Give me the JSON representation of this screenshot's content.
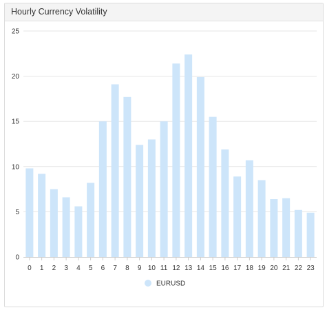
{
  "widget": {
    "title": "Hourly Currency Volatility"
  },
  "chart_data": {
    "type": "bar",
    "categories": [
      "0",
      "1",
      "2",
      "3",
      "4",
      "5",
      "6",
      "7",
      "8",
      "9",
      "10",
      "11",
      "12",
      "13",
      "14",
      "15",
      "16",
      "17",
      "18",
      "19",
      "20",
      "21",
      "22",
      "23"
    ],
    "series": [
      {
        "name": "EURUSD",
        "values": [
          9.8,
          9.2,
          7.5,
          6.6,
          5.6,
          8.2,
          15.0,
          19.1,
          17.7,
          12.4,
          13.0,
          15.0,
          21.4,
          22.4,
          19.9,
          15.5,
          11.9,
          8.9,
          10.7,
          8.5,
          6.4,
          6.5,
          5.2,
          4.9
        ],
        "color": "#cde5fa"
      }
    ],
    "yticks": [
      "0",
      "5",
      "10",
      "15",
      "20",
      "25"
    ],
    "ylim": [
      0,
      25
    ],
    "grid": true,
    "legend": "bottom-center",
    "gridline_color": "#e6e6e6",
    "axis_color": "#cccccc"
  }
}
